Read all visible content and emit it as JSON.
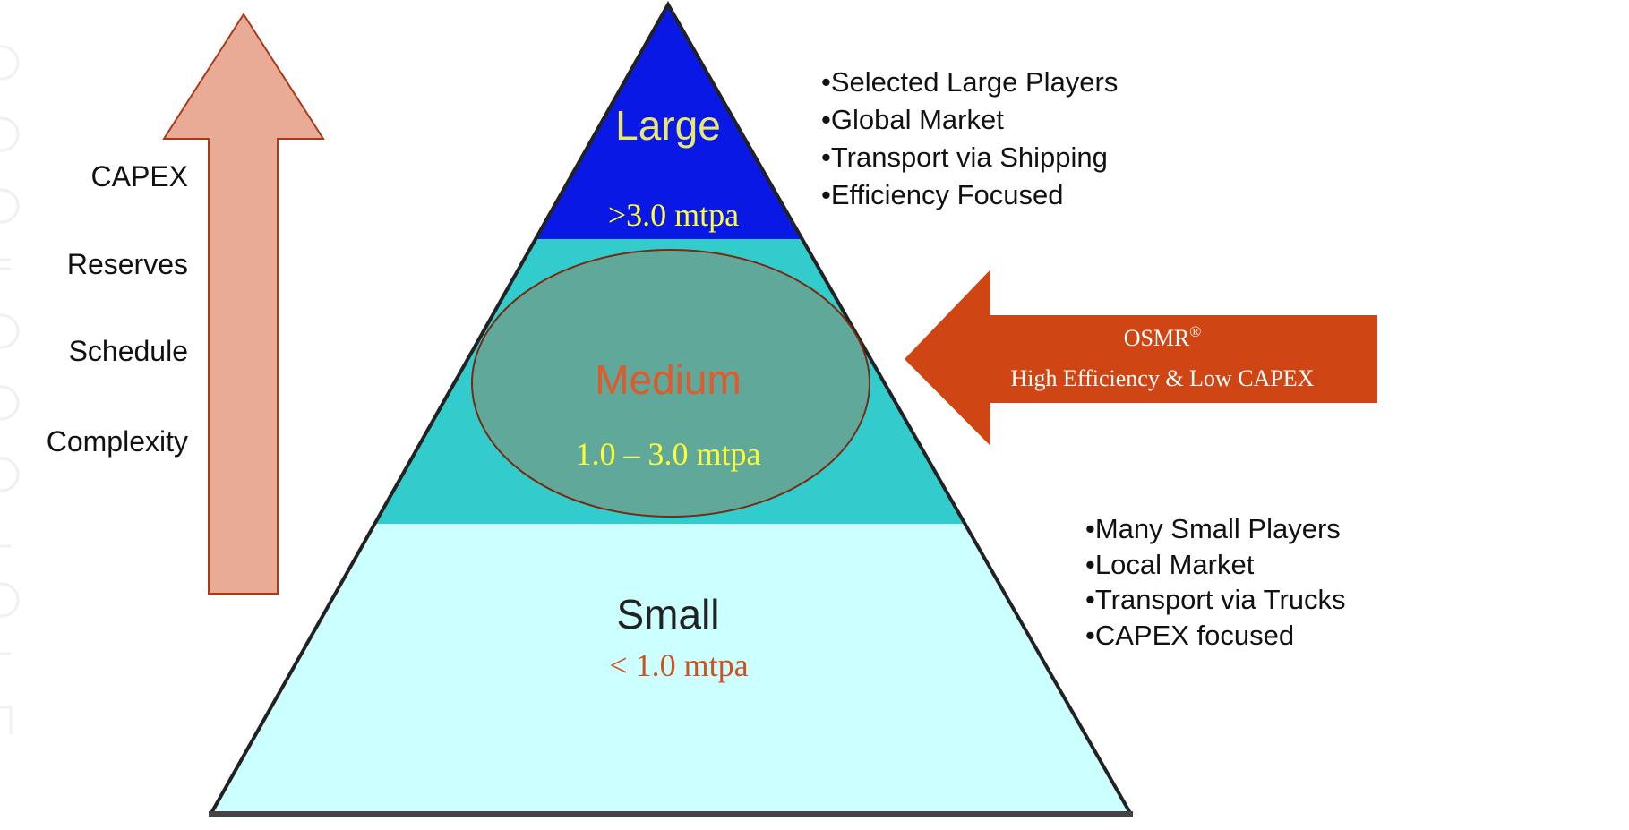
{
  "left_arrow": {
    "labels": [
      "CAPEX",
      "Reserves",
      "Schedule",
      "Complexity"
    ]
  },
  "tiers": {
    "large": {
      "name": "Large",
      "range": ">3.0 mtpa"
    },
    "medium": {
      "name": "Medium",
      "range": "1.0 – 3.0 mtpa"
    },
    "small": {
      "name": "Small",
      "range": "< 1.0 mtpa"
    }
  },
  "right_arrow": {
    "title_base": "OSMR",
    "title_mark": "®",
    "subtitle": "High Efficiency & Low CAPEX"
  },
  "large_notes": [
    "•Selected Large Players",
    "•Global Market",
    "•Transport via Shipping",
    "•Efficiency Focused"
  ],
  "small_notes": [
    "•Many Small Players",
    "•Local Market",
    "•Transport via Trucks",
    "•CAPEX focused"
  ],
  "colors": {
    "large_band": "#0a18e6",
    "medium_band": "#33cccc",
    "small_band": "#ccffff",
    "ellipse_fill": "#5fa89a",
    "ellipse_stroke": "#7a2a10",
    "up_arrow_fill": "#eaab96",
    "up_arrow_stroke": "#a83a1c",
    "osmr_arrow_fill": "#cf4614",
    "tier_label_large": "#e8e870",
    "tier_label_medium": "#e05a2a",
    "tier_label_small": "#222222",
    "range_yellow": "#ffff33",
    "range_orange": "#d2501e"
  }
}
